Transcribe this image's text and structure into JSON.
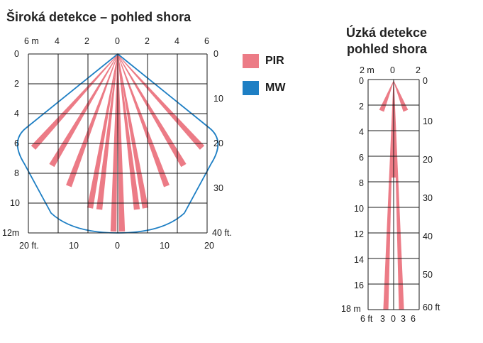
{
  "wide": {
    "title": "Široká detekce – pohled shora",
    "top_labels": [
      "6 m",
      "4",
      "2",
      "0",
      "2",
      "4",
      "6"
    ],
    "left_labels": [
      "0",
      "2",
      "4",
      "6",
      "8",
      "10",
      "12m"
    ],
    "right_labels": [
      "0",
      "10",
      "20",
      "30",
      "40 ft."
    ],
    "bottom_labels": [
      "20 ft.",
      "10",
      "0",
      "10",
      "20"
    ]
  },
  "narrow": {
    "title_line1": "Úzká detekce",
    "title_line2": "pohled shora",
    "top_labels": [
      "2 m",
      "0",
      "2"
    ],
    "left_labels": [
      "0",
      "2",
      "4",
      "6",
      "8",
      "10",
      "12",
      "14",
      "16",
      "18 m"
    ],
    "right_labels": [
      "0",
      "10",
      "20",
      "30",
      "40",
      "50",
      "60 ft"
    ],
    "bottom_labels": [
      "6 ft",
      "3",
      "0",
      "3",
      "6"
    ]
  },
  "legend": {
    "pir_label": "PIR",
    "mw_label": "MW"
  },
  "colors": {
    "pir": "#ec7b86",
    "mw": "#1e7fc4",
    "grid": "#1a1a1a"
  }
}
